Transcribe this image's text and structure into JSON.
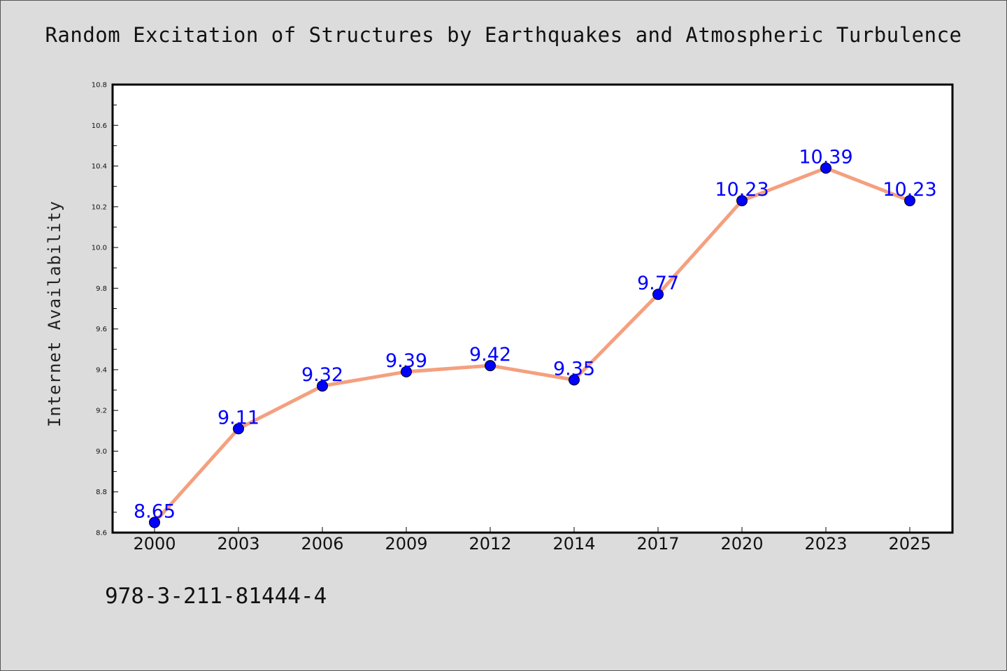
{
  "chart_data": {
    "type": "line",
    "title": "Random Excitation of Structures by Earthquakes and Atmospheric Turbulence",
    "xlabel": "",
    "ylabel": "Internet Availability",
    "categories": [
      "2000",
      "2003",
      "2006",
      "2009",
      "2012",
      "2014",
      "2017",
      "2020",
      "2023",
      "2025"
    ],
    "series": [
      {
        "values": [
          8.65,
          9.11,
          9.32,
          9.39,
          9.42,
          9.35,
          9.77,
          10.23,
          10.39,
          10.23
        ],
        "data_labels": [
          "8.65",
          "9.11",
          "9.32",
          "9.39",
          "9.42",
          "9.35",
          "9.77",
          "10.23",
          "10.39",
          "10.23"
        ],
        "line_color": "#f4a07f",
        "marker_color": "#0000ff"
      }
    ],
    "ylim": [
      8.6,
      10.8
    ],
    "yticks": [
      "8.6",
      "8.8",
      "9.0",
      "9.2",
      "9.4",
      "9.6",
      "9.8",
      "10.0",
      "10.2",
      "10.4",
      "10.6",
      "10.8"
    ],
    "grid": false,
    "legend": "none",
    "label_color": "#0000ff",
    "background": "#dcdcdc",
    "plot_background": "#ffffff"
  },
  "footer": {
    "isbn": "978-3-211-81444-4"
  }
}
